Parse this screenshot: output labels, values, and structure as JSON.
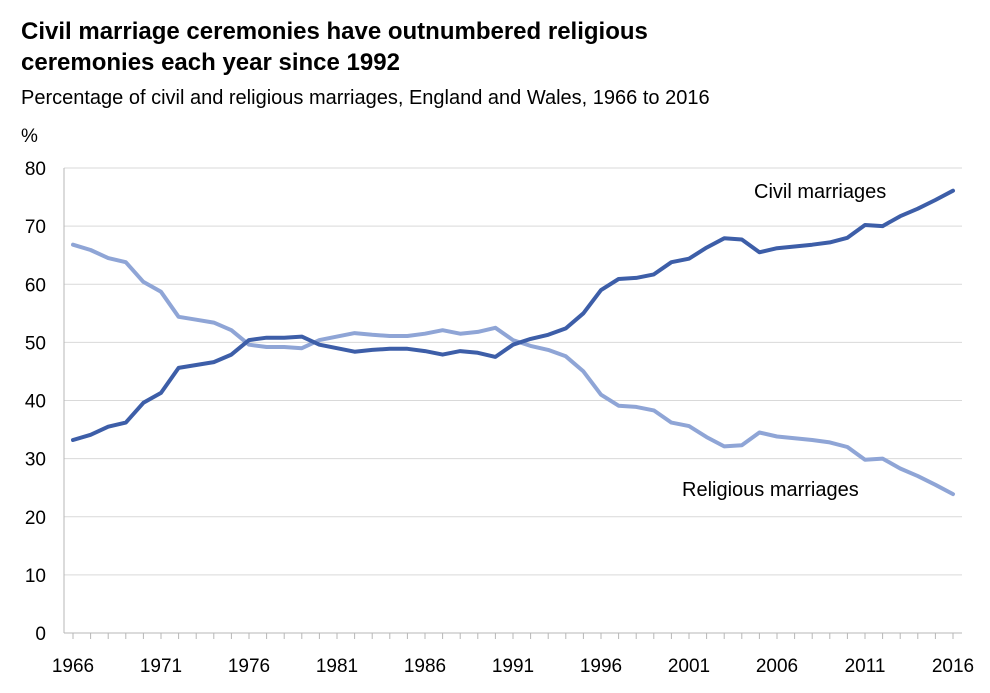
{
  "header": {
    "title_line1": "Civil marriage ceremonies have outnumbered religious",
    "title_line2": "ceremonies each year since 1992",
    "subtitle": "Percentage of civil and religious marriages, England and Wales, 1966 to 2016"
  },
  "chart_data": {
    "type": "line",
    "title": "Civil marriage ceremonies have outnumbered religious ceremonies each year since 1992",
    "subtitle": "Percentage of civil and religious marriages, England and Wales, 1966 to 2016",
    "ylabel": "%",
    "xlabel": "",
    "ylim": [
      0,
      80
    ],
    "yticks": [
      0,
      10,
      20,
      30,
      40,
      50,
      60,
      70,
      80
    ],
    "xticks": [
      1966,
      1971,
      1976,
      1981,
      1986,
      1991,
      1996,
      2001,
      2006,
      2011,
      2016
    ],
    "grid": true,
    "x": [
      1966,
      1967,
      1968,
      1969,
      1970,
      1971,
      1972,
      1973,
      1974,
      1975,
      1976,
      1977,
      1978,
      1979,
      1980,
      1981,
      1982,
      1983,
      1984,
      1985,
      1986,
      1987,
      1988,
      1989,
      1990,
      1991,
      1992,
      1993,
      1994,
      1995,
      1996,
      1997,
      1998,
      1999,
      2000,
      2001,
      2002,
      2003,
      2004,
      2005,
      2006,
      2007,
      2008,
      2009,
      2010,
      2011,
      2012,
      2013,
      2014,
      2015,
      2016
    ],
    "series": [
      {
        "name": "Civil marriages",
        "color": "#3d5ea8",
        "values": [
          33.2,
          34.1,
          35.5,
          36.2,
          39.6,
          41.3,
          45.6,
          46.1,
          46.6,
          47.9,
          50.4,
          50.8,
          50.8,
          51.0,
          49.6,
          49.0,
          48.4,
          48.7,
          48.9,
          48.9,
          48.5,
          47.9,
          48.5,
          48.2,
          47.5,
          49.6,
          50.6,
          51.3,
          52.4,
          55.0,
          59.0,
          60.9,
          61.1,
          61.7,
          63.8,
          64.4,
          66.3,
          67.9,
          67.7,
          65.5,
          66.2,
          66.5,
          66.8,
          67.2,
          68.0,
          70.2,
          70.0,
          71.7,
          73.0,
          74.5,
          76.1
        ]
      },
      {
        "name": "Religious marriages",
        "color": "#8fa5d6",
        "values": [
          66.8,
          65.9,
          64.5,
          63.8,
          60.4,
          58.7,
          54.4,
          53.9,
          53.4,
          52.1,
          49.6,
          49.2,
          49.2,
          49.0,
          50.4,
          51.0,
          51.6,
          51.3,
          51.1,
          51.1,
          51.5,
          52.1,
          51.5,
          51.8,
          52.5,
          50.4,
          49.4,
          48.7,
          47.6,
          45.0,
          41.0,
          39.1,
          38.9,
          38.3,
          36.2,
          35.6,
          33.7,
          32.1,
          32.3,
          34.5,
          33.8,
          33.5,
          33.2,
          32.8,
          32.0,
          29.8,
          30.0,
          28.3,
          27.0,
          25.5,
          23.9
        ]
      }
    ],
    "annotations": [
      "Civil marriages",
      "Religious marriages"
    ]
  }
}
